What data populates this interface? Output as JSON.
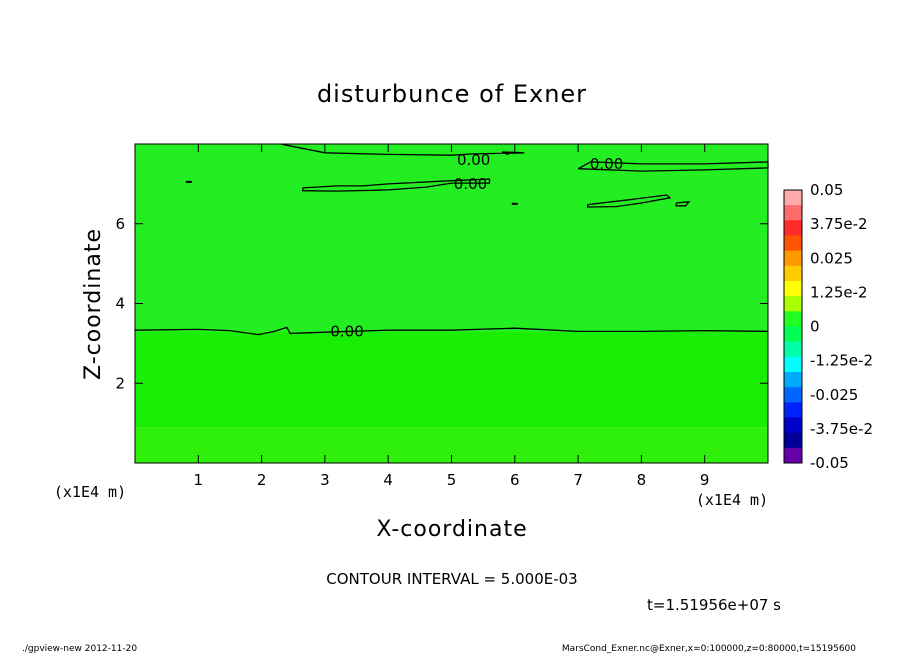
{
  "chart_data": {
    "type": "contour",
    "title": "disturbunce of Exner",
    "xlabel": "X-coordinate",
    "ylabel": "Z-coordinate",
    "x_unit": "(x1E4 m)",
    "x_unit_right": "(x1E4 m)",
    "xlim": [
      0,
      10
    ],
    "ylim": [
      0,
      8
    ],
    "x_ticks": [
      1,
      2,
      3,
      4,
      5,
      6,
      7,
      8,
      9
    ],
    "y_ticks": [
      2,
      4,
      6
    ],
    "contour_interval_text": "CONTOUR INTERVAL = 5.000E-03",
    "time_text": "t=1.51956e+07 s",
    "contour_labels": [
      {
        "text": "0.00",
        "x": 5.35,
        "z": 7.6
      },
      {
        "text": "0.00",
        "x": 5.3,
        "z": 7.0
      },
      {
        "text": "0.00",
        "x": 7.45,
        "z": 7.5
      },
      {
        "text": "0.00",
        "x": 3.35,
        "z": 3.3
      }
    ],
    "contours_zero": [
      [
        [
          2.3,
          8.0
        ],
        [
          3.0,
          7.78
        ],
        [
          4.0,
          7.74
        ],
        [
          5.0,
          7.72
        ],
        [
          5.3,
          7.75
        ],
        [
          6.15,
          7.78
        ],
        [
          5.8,
          7.8
        ],
        [
          5.9,
          7.73
        ]
      ],
      [
        [
          2.65,
          6.9
        ],
        [
          3.2,
          6.95
        ],
        [
          3.6,
          6.95
        ],
        [
          4.0,
          7.0
        ],
        [
          5.0,
          7.08
        ],
        [
          5.6,
          7.12
        ],
        [
          5.6,
          7.02
        ],
        [
          5.0,
          7.02
        ],
        [
          4.6,
          6.92
        ],
        [
          4.0,
          6.85
        ],
        [
          3.2,
          6.82
        ],
        [
          2.65,
          6.83
        ],
        [
          2.65,
          6.9
        ]
      ],
      [
        [
          7.0,
          7.38
        ],
        [
          8.0,
          7.32
        ],
        [
          9.0,
          7.35
        ],
        [
          10.0,
          7.4
        ],
        [
          10.0,
          7.55
        ],
        [
          9.0,
          7.5
        ],
        [
          8.0,
          7.5
        ],
        [
          7.2,
          7.55
        ],
        [
          7.0,
          7.38
        ]
      ],
      [
        [
          7.15,
          6.48
        ],
        [
          7.8,
          6.6
        ],
        [
          8.4,
          6.72
        ],
        [
          8.45,
          6.65
        ],
        [
          8.0,
          6.52
        ],
        [
          7.6,
          6.43
        ],
        [
          7.15,
          6.42
        ],
        [
          7.15,
          6.48
        ]
      ],
      [
        [
          8.55,
          6.52
        ],
        [
          8.75,
          6.55
        ],
        [
          8.7,
          6.45
        ],
        [
          8.55,
          6.45
        ],
        [
          8.55,
          6.52
        ]
      ],
      [
        [
          0.0,
          3.33
        ],
        [
          1.0,
          3.35
        ],
        [
          1.5,
          3.32
        ],
        [
          1.95,
          3.22
        ],
        [
          2.2,
          3.3
        ],
        [
          2.4,
          3.4
        ],
        [
          2.45,
          3.25
        ],
        [
          3.0,
          3.28
        ],
        [
          4.0,
          3.33
        ],
        [
          5.0,
          3.33
        ],
        [
          6.0,
          3.38
        ],
        [
          7.0,
          3.3
        ],
        [
          8.0,
          3.3
        ],
        [
          9.0,
          3.32
        ],
        [
          10.0,
          3.3
        ]
      ]
    ],
    "dots": [
      {
        "x": 0.85,
        "z": 7.05
      },
      {
        "x": 6.0,
        "z": 6.5
      }
    ],
    "fill_bands": [
      {
        "z0": 3.3,
        "z1": 8.0,
        "color": "#22ee22"
      },
      {
        "z0": 0.9,
        "z1": 3.3,
        "color": "#1aee05"
      },
      {
        "z0": 0.0,
        "z1": 0.9,
        "color": "#2ef00a"
      }
    ],
    "colorbar": {
      "labels": [
        "0.05",
        "3.75e-2",
        "0.025",
        "1.25e-2",
        "0",
        "-1.25e-2",
        "-0.025",
        "-3.75e-2",
        "-0.05"
      ],
      "colors": [
        "#ffaaaa",
        "#ff6a6a",
        "#ff2a2a",
        "#ff5500",
        "#ff9900",
        "#ffcc00",
        "#ffff00",
        "#aaff00",
        "#22ff22",
        "#00ff55",
        "#00ffaa",
        "#00ffff",
        "#00aaff",
        "#0066ff",
        "#0022ff",
        "#0000cc",
        "#000099",
        "#6600aa"
      ]
    },
    "footer_left": "./gpview-new   2012-11-20",
    "footer_right": "MarsCond_Exner.nc@Exner,x=0:100000,z=0:80000,t=15195600"
  }
}
